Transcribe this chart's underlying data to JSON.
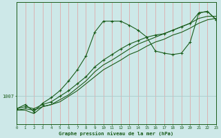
{
  "bg_color": "#cde8e8",
  "grid_color_v": "#ddaaaa",
  "grid_color_h": "#aacccc",
  "line_color": "#1a5c1a",
  "xlabel": "Graphe pression niveau de la mer (hPa)",
  "ylabel_tick": "1007",
  "xlim": [
    0,
    23
  ],
  "ylim_bottom": 1003.0,
  "ylim_top": 1020.5,
  "ytick_val": 1007,
  "xticks": [
    0,
    1,
    2,
    3,
    4,
    5,
    6,
    7,
    8,
    9,
    10,
    11,
    12,
    13,
    14,
    15,
    16,
    17,
    18,
    19,
    20,
    21,
    22,
    23
  ],
  "series1": [
    [
      0,
      1005.2
    ],
    [
      1,
      1005.8
    ],
    [
      2,
      1004.8
    ],
    [
      3,
      1006.0
    ],
    [
      4,
      1006.8
    ],
    [
      5,
      1007.8
    ],
    [
      6,
      1009.2
    ],
    [
      7,
      1010.8
    ],
    [
      8,
      1012.8
    ],
    [
      9,
      1016.2
    ],
    [
      10,
      1017.8
    ],
    [
      11,
      1017.8
    ],
    [
      12,
      1017.8
    ],
    [
      13,
      1017.2
    ],
    [
      14,
      1016.5
    ],
    [
      15,
      1015.5
    ],
    [
      16,
      1013.5
    ],
    [
      17,
      1013.2
    ],
    [
      18,
      1013.0
    ],
    [
      19,
      1013.2
    ],
    [
      20,
      1014.8
    ],
    [
      21,
      1019.0
    ],
    [
      22,
      1019.2
    ],
    [
      23,
      1018.0
    ]
  ],
  "series2": [
    [
      0,
      1005.0
    ],
    [
      1,
      1005.0
    ],
    [
      2,
      1004.5
    ],
    [
      3,
      1005.5
    ],
    [
      4,
      1005.8
    ],
    [
      5,
      1006.2
    ],
    [
      6,
      1007.0
    ],
    [
      7,
      1007.8
    ],
    [
      8,
      1008.8
    ],
    [
      9,
      1009.8
    ],
    [
      10,
      1010.8
    ],
    [
      11,
      1011.5
    ],
    [
      12,
      1012.2
    ],
    [
      13,
      1013.0
    ],
    [
      14,
      1013.5
    ],
    [
      15,
      1014.2
    ],
    [
      16,
      1014.8
    ],
    [
      17,
      1015.2
    ],
    [
      18,
      1015.8
    ],
    [
      19,
      1016.2
    ],
    [
      20,
      1016.8
    ],
    [
      21,
      1017.5
    ],
    [
      22,
      1018.0
    ],
    [
      23,
      1018.2
    ]
  ],
  "series3": [
    [
      0,
      1005.0
    ],
    [
      1,
      1005.2
    ],
    [
      2,
      1005.0
    ],
    [
      3,
      1005.5
    ],
    [
      4,
      1005.8
    ],
    [
      5,
      1006.5
    ],
    [
      6,
      1007.2
    ],
    [
      7,
      1008.2
    ],
    [
      8,
      1009.2
    ],
    [
      9,
      1010.5
    ],
    [
      10,
      1011.5
    ],
    [
      11,
      1012.2
    ],
    [
      12,
      1013.0
    ],
    [
      13,
      1013.8
    ],
    [
      14,
      1014.5
    ],
    [
      15,
      1015.0
    ],
    [
      16,
      1015.5
    ],
    [
      17,
      1016.0
    ],
    [
      18,
      1016.5
    ],
    [
      19,
      1017.0
    ],
    [
      20,
      1017.5
    ],
    [
      21,
      1018.2
    ],
    [
      22,
      1018.5
    ],
    [
      23,
      1018.5
    ]
  ],
  "series4": [
    [
      0,
      1005.2
    ],
    [
      1,
      1005.5
    ],
    [
      2,
      1005.2
    ],
    [
      3,
      1005.8
    ],
    [
      4,
      1006.2
    ],
    [
      5,
      1007.0
    ],
    [
      6,
      1007.8
    ],
    [
      7,
      1008.8
    ],
    [
      8,
      1009.8
    ],
    [
      9,
      1011.2
    ],
    [
      10,
      1012.2
    ],
    [
      11,
      1013.0
    ],
    [
      12,
      1013.8
    ],
    [
      13,
      1014.5
    ],
    [
      14,
      1015.0
    ],
    [
      15,
      1015.5
    ],
    [
      16,
      1015.8
    ],
    [
      17,
      1016.0
    ],
    [
      18,
      1016.5
    ],
    [
      19,
      1017.0
    ],
    [
      20,
      1017.5
    ],
    [
      21,
      1019.0
    ],
    [
      22,
      1019.2
    ],
    [
      23,
      1018.0
    ]
  ]
}
